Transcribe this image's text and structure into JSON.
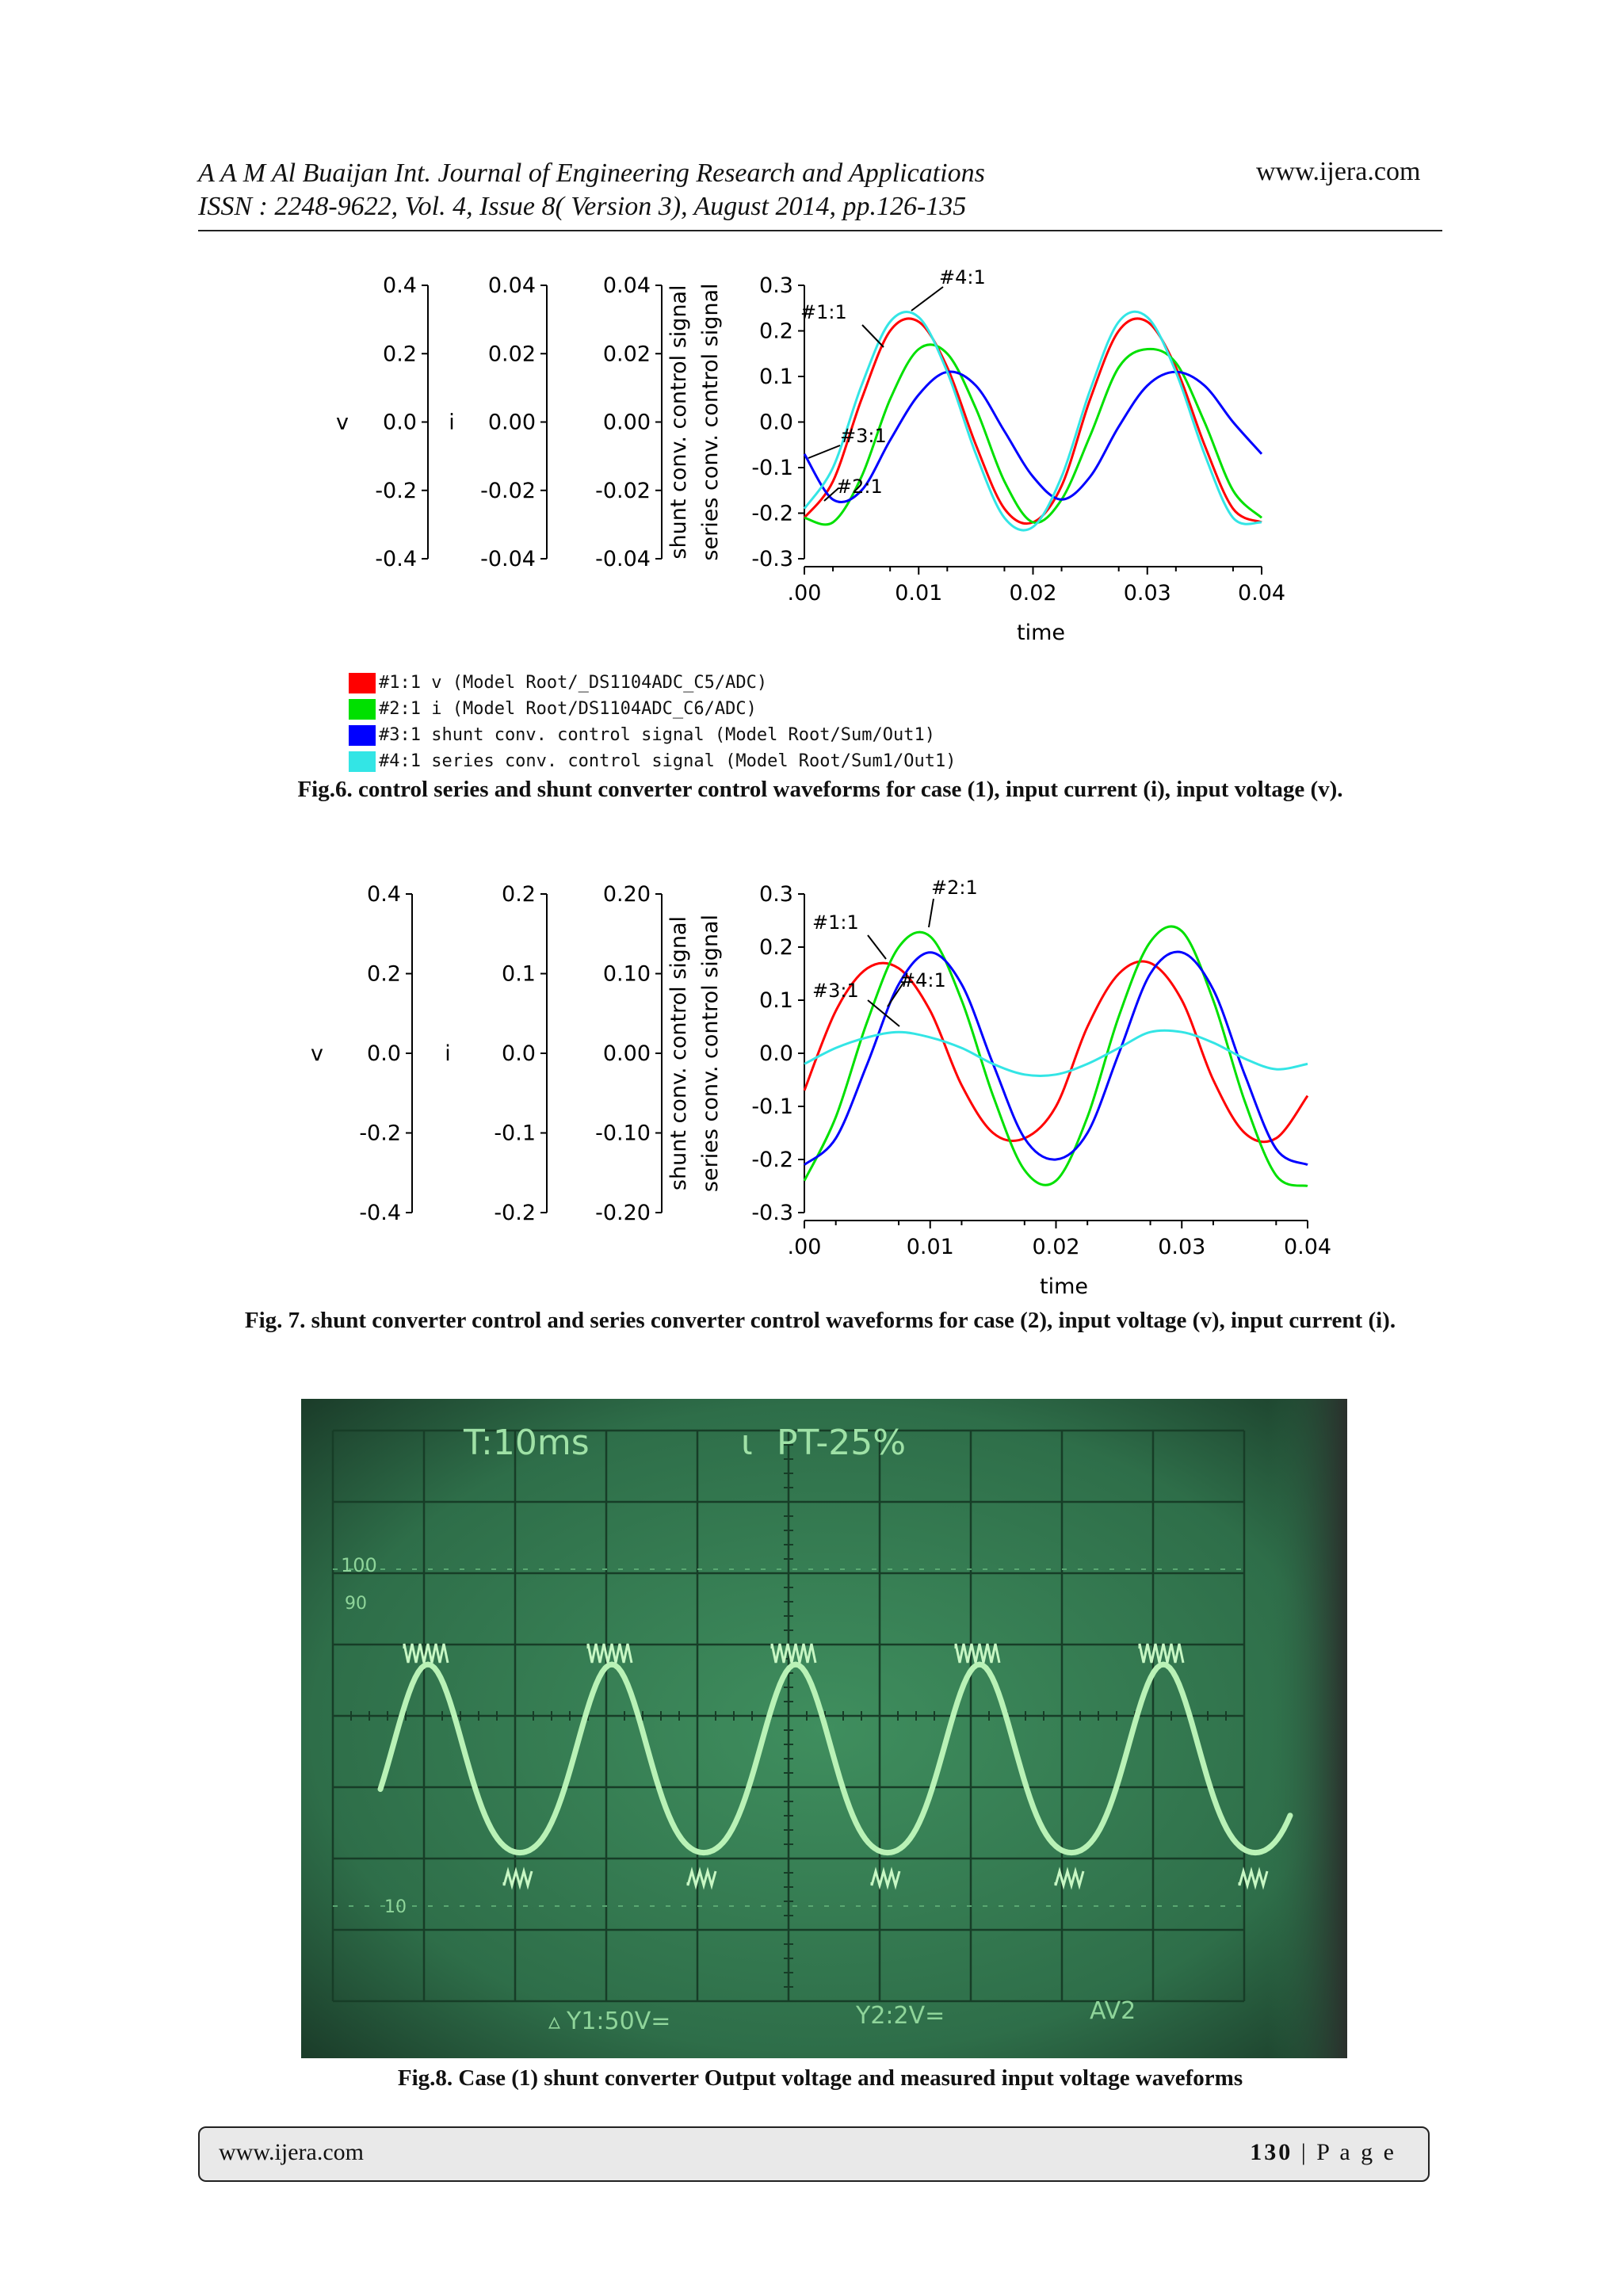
{
  "header": {
    "line1": "A A M Al Buaijan Int. Journal of Engineering Research and Applications",
    "line2": "ISSN : 2248-9622, Vol. 4, Issue 8( Version 3), August 2014, pp.126-135",
    "website": "www.ijera.com"
  },
  "fig6": {
    "caption": "Fig.6. control series and shunt converter control waveforms for case (1), input current (i), input voltage (v).",
    "axes": {
      "v": {
        "label": "v",
        "ticks": [
          "0.4",
          "0.2",
          "0.0",
          "-0.2",
          "-0.4"
        ]
      },
      "i": {
        "label": "i",
        "ticks": [
          "0.04",
          "0.02",
          "0.00",
          "-0.02",
          "-0.04"
        ]
      },
      "shunt": {
        "label": "shunt conv. control signal",
        "ticks": [
          "0.04",
          "0.02",
          "0.00",
          "-0.02",
          "-0.04"
        ]
      },
      "series": {
        "label": "series conv. control signal",
        "ticks": [
          "0.3",
          "0.2",
          "0.1",
          "0.0",
          "-0.1",
          "-0.2",
          "-0.3"
        ]
      },
      "x": {
        "label": "time",
        "ticks": [
          ".00",
          "0.01",
          "0.02",
          "0.03",
          "0.04"
        ]
      }
    },
    "annotations": [
      "#1:1",
      "#2:1",
      "#3:1",
      "#4:1"
    ],
    "legend": [
      {
        "text": "#1:1 v (Model Root/_DS1104ADC_C5/ADC)",
        "color": "#ff0000"
      },
      {
        "text": "#2:1 i (Model Root/DS1104ADC_C6/ADC)",
        "color": "#00e000"
      },
      {
        "text": "#3:1 shunt conv. control signal (Model Root/Sum/Out1)",
        "color": "#0000ff"
      },
      {
        "text": "#4:1 series conv. control signal (Model Root/Sum1/Out1)",
        "color": "#33e5e5"
      }
    ]
  },
  "fig7": {
    "caption": "Fig. 7. shunt converter control and series converter control waveforms for case (2), input voltage (v), input current (i).",
    "axes": {
      "v": {
        "label": "v",
        "ticks": [
          "0.4",
          "0.2",
          "0.0",
          "-0.2",
          "-0.4"
        ]
      },
      "i": {
        "label": "i",
        "ticks": [
          "0.2",
          "0.1",
          "0.0",
          "-0.1",
          "-0.2"
        ]
      },
      "shunt": {
        "label": "shunt conv. control signal",
        "ticks": [
          "0.20",
          "0.10",
          "0.00",
          "-0.10",
          "-0.20"
        ]
      },
      "series": {
        "label": "series conv. control signal",
        "ticks": [
          "0.3",
          "0.2",
          "0.1",
          "0.0",
          "-0.1",
          "-0.2",
          "-0.3"
        ]
      },
      "x": {
        "label": "time",
        "ticks": [
          ".00",
          "0.01",
          "0.02",
          "0.03",
          "0.04"
        ]
      }
    },
    "annotations": [
      "#1:1",
      "#2:1",
      "#3:1",
      "#4:1"
    ]
  },
  "fig8": {
    "caption": "Fig.8. Case (1) shunt converter Output voltage and measured input voltage waveforms",
    "screen": {
      "top_left": "T:10ms",
      "top_center": "PT-25%",
      "bottom_left": "Y1:50V=",
      "bottom_center": "Y2:2V=",
      "bottom_right": "AV2",
      "scale_100": "100",
      "scale_90": "90",
      "scale_10": "10"
    }
  },
  "chart_data": [
    {
      "type": "line",
      "title": "",
      "xlabel": "time",
      "ylabel": "series conv. control signal",
      "xlim": [
        0,
        0.04
      ],
      "ylim": [
        -0.3,
        0.3
      ],
      "x": [
        0.0,
        0.0025,
        0.005,
        0.0075,
        0.01,
        0.0125,
        0.015,
        0.0175,
        0.02,
        0.0225,
        0.025,
        0.0275,
        0.03,
        0.0325,
        0.035,
        0.0375,
        0.04
      ],
      "series": [
        {
          "name": "#1:1 v",
          "color": "#ff0000",
          "values": [
            -0.21,
            -0.13,
            0.05,
            0.2,
            0.22,
            0.12,
            -0.05,
            -0.19,
            -0.22,
            -0.14,
            0.05,
            0.2,
            0.22,
            0.12,
            -0.05,
            -0.19,
            -0.22
          ]
        },
        {
          "name": "#2:1 i",
          "color": "#00e000",
          "values": [
            -0.21,
            -0.22,
            -0.12,
            0.05,
            0.16,
            0.15,
            0.03,
            -0.13,
            -0.22,
            -0.17,
            -0.03,
            0.12,
            0.16,
            0.13,
            0.0,
            -0.15,
            -0.21
          ]
        },
        {
          "name": "#3:1 shunt conv. control signal",
          "color": "#0000ff",
          "values": [
            -0.07,
            -0.17,
            -0.15,
            -0.04,
            0.06,
            0.11,
            0.08,
            -0.02,
            -0.12,
            -0.17,
            -0.12,
            -0.01,
            0.08,
            0.11,
            0.08,
            0.0,
            -0.07
          ]
        },
        {
          "name": "#4:1 series conv. control signal",
          "color": "#33e5e5",
          "values": [
            -0.19,
            -0.1,
            0.08,
            0.22,
            0.23,
            0.11,
            -0.07,
            -0.21,
            -0.23,
            -0.12,
            0.07,
            0.22,
            0.23,
            0.11,
            -0.07,
            -0.21,
            -0.22
          ]
        }
      ]
    },
    {
      "type": "line",
      "title": "",
      "xlabel": "time",
      "ylabel": "series conv. control signal",
      "xlim": [
        0,
        0.04
      ],
      "ylim": [
        -0.3,
        0.3
      ],
      "x": [
        0.0,
        0.0025,
        0.005,
        0.0075,
        0.01,
        0.0125,
        0.015,
        0.0175,
        0.02,
        0.0225,
        0.025,
        0.0275,
        0.03,
        0.0325,
        0.035,
        0.0375,
        0.04
      ],
      "series": [
        {
          "name": "#1:1",
          "color": "#ff0000",
          "values": [
            -0.07,
            0.08,
            0.16,
            0.16,
            0.08,
            -0.06,
            -0.15,
            -0.16,
            -0.1,
            0.05,
            0.15,
            0.17,
            0.1,
            -0.05,
            -0.15,
            -0.16,
            -0.08
          ]
        },
        {
          "name": "#2:1",
          "color": "#00e000",
          "values": [
            -0.24,
            -0.12,
            0.06,
            0.2,
            0.22,
            0.1,
            -0.08,
            -0.22,
            -0.24,
            -0.12,
            0.07,
            0.21,
            0.23,
            0.1,
            -0.09,
            -0.23,
            -0.25
          ]
        },
        {
          "name": "#3:1",
          "color": "#0000ff",
          "values": [
            -0.21,
            -0.16,
            -0.02,
            0.13,
            0.19,
            0.13,
            -0.02,
            -0.16,
            -0.2,
            -0.15,
            0.0,
            0.15,
            0.19,
            0.12,
            -0.04,
            -0.18,
            -0.21
          ]
        },
        {
          "name": "#4:1",
          "color": "#33e5e5",
          "values": [
            -0.02,
            0.01,
            0.03,
            0.04,
            0.03,
            0.01,
            -0.02,
            -0.04,
            -0.04,
            -0.02,
            0.01,
            0.04,
            0.04,
            0.02,
            -0.01,
            -0.03,
            -0.02
          ]
        }
      ]
    }
  ]
}
